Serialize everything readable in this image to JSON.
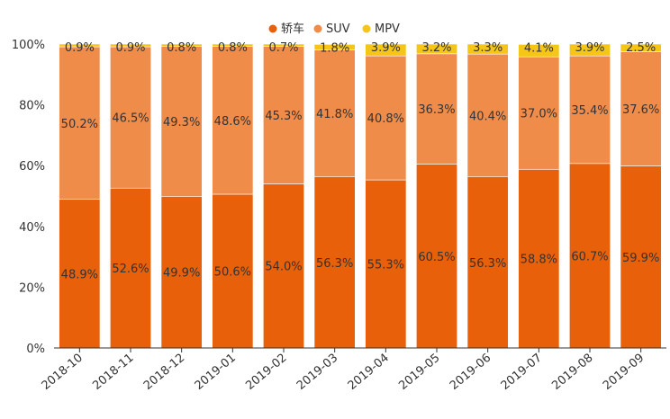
{
  "chart_data": {
    "type": "bar",
    "stacked": true,
    "categories": [
      "2018-10",
      "2018-11",
      "2018-12",
      "2019-01",
      "2019-02",
      "2019-03",
      "2019-04",
      "2019-05",
      "2019-06",
      "2019-07",
      "2019-08",
      "2019-09"
    ],
    "series": [
      {
        "name": "轿车",
        "color": "#e8600a",
        "values": [
          48.9,
          52.6,
          49.9,
          50.6,
          54.0,
          56.3,
          55.3,
          60.5,
          56.3,
          58.8,
          60.7,
          59.9
        ]
      },
      {
        "name": "SUV",
        "color": "#f08c4a",
        "values": [
          50.2,
          46.5,
          49.3,
          48.6,
          45.3,
          41.8,
          40.8,
          36.3,
          40.4,
          37.0,
          35.4,
          37.6
        ]
      },
      {
        "name": "MPV",
        "color": "#f5c518",
        "values": [
          0.9,
          0.9,
          0.8,
          0.8,
          0.7,
          1.8,
          3.9,
          3.2,
          3.3,
          4.1,
          3.9,
          2.5
        ]
      }
    ],
    "yticks": [
      "0%",
      "20%",
      "40%",
      "60%",
      "80%",
      "100%"
    ],
    "ylim": [
      0,
      100
    ],
    "title": "",
    "xlabel": "",
    "ylabel": "",
    "legend_position": "top-center",
    "grid": false
  }
}
